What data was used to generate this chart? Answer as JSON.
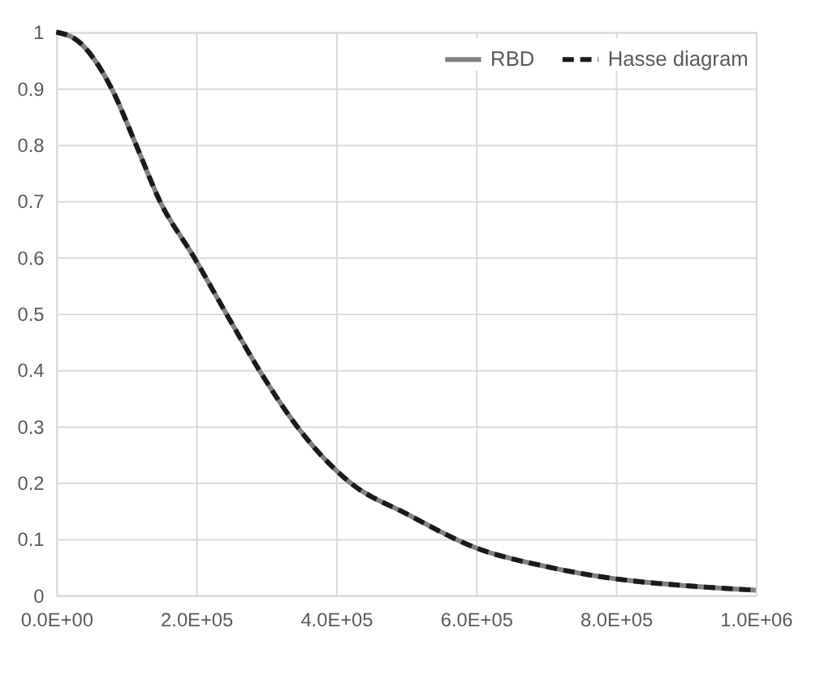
{
  "chart_data": {
    "type": "line",
    "x": [
      0,
      30000,
      79000,
      114000,
      148000,
      197000,
      243000,
      290000,
      344000,
      420000,
      500000,
      600000,
      700000,
      800000,
      900000,
      1000000
    ],
    "series": [
      {
        "name": "RBD",
        "color": "#808080",
        "line_style": "solid",
        "values": [
          1,
          0.985,
          0.9,
          0.8,
          0.7,
          0.6,
          0.5,
          0.4,
          0.3,
          0.2,
          0.145,
          0.084,
          0.051,
          0.029,
          0.017,
          0.009
        ]
      },
      {
        "name": "Hasse diagram",
        "color": "#1a1a1a",
        "line_style": "dashed",
        "values": [
          1,
          0.985,
          0.9,
          0.8,
          0.7,
          0.6,
          0.5,
          0.4,
          0.3,
          0.2,
          0.145,
          0.084,
          0.051,
          0.029,
          0.017,
          0.009
        ]
      }
    ],
    "xlim": [
      0,
      1000000
    ],
    "xticks": [
      {
        "value": 0,
        "label": "0.0E+00"
      },
      {
        "value": 200000,
        "label": "2.0E+05"
      },
      {
        "value": 400000,
        "label": "4.0E+05"
      },
      {
        "value": 600000,
        "label": "6.0E+05"
      },
      {
        "value": 800000,
        "label": "8.0E+05"
      },
      {
        "value": 1000000,
        "label": "1.0E+06"
      }
    ],
    "ylim": [
      0,
      1
    ],
    "yticks": [
      0,
      0.1,
      0.2,
      0.3,
      0.4,
      0.5,
      0.6,
      0.7,
      0.8,
      0.9,
      1
    ],
    "grid": true,
    "legend": "top right",
    "marker": "none"
  }
}
